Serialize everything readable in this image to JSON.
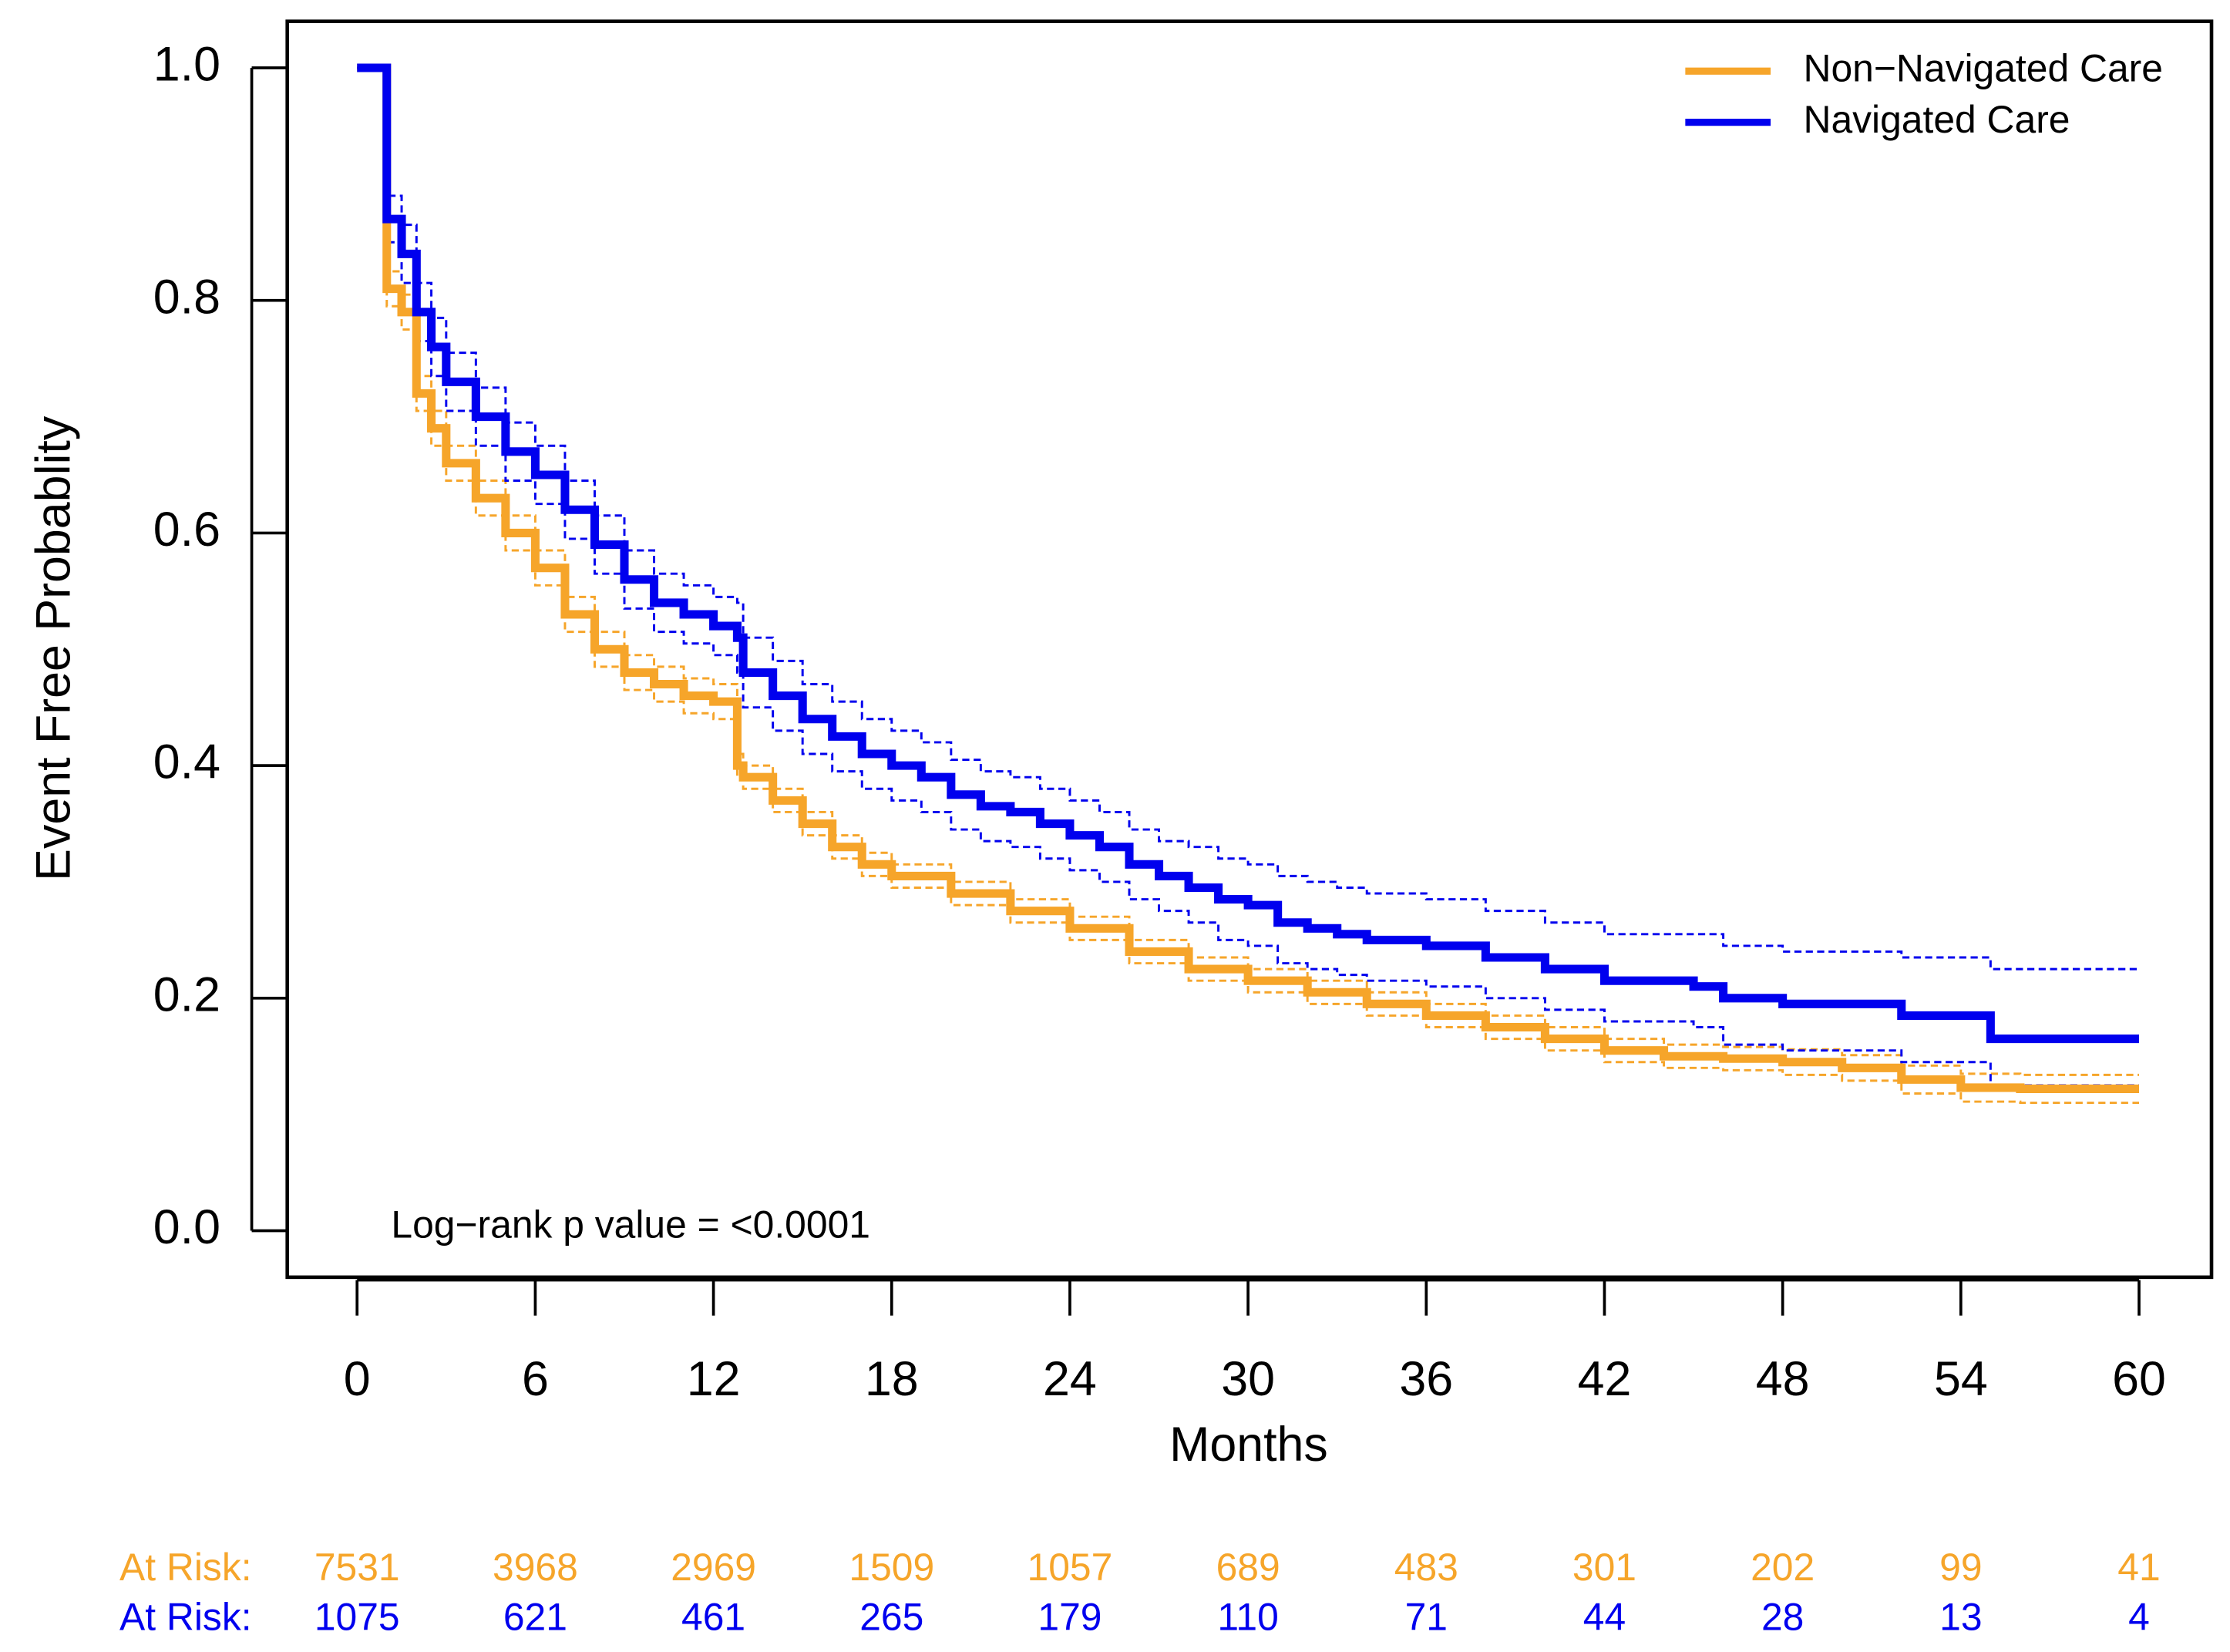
{
  "chart_data": {
    "type": "km",
    "y_label": "Event Free Probablity",
    "x_label": "Months",
    "annotation": "Log−rank p value = <0.0001",
    "xlim": [
      -2.35,
      62.44
    ],
    "ylim": [
      -0.04,
      1.04
    ],
    "xticks": [
      0,
      6,
      12,
      18,
      24,
      30,
      36,
      42,
      48,
      54,
      60
    ],
    "yticks": [
      {
        "value": 0,
        "label": "0.0"
      },
      0.2,
      0.4,
      0.6,
      0.8,
      {
        "value": 1,
        "label": "1.0"
      }
    ],
    "legend": "top-right",
    "at_risk_label": "At Risk:",
    "series": [
      {
        "name": "Non−Navigated Care",
        "color": "#f6a52a",
        "x": [
          0,
          1,
          1.5,
          2,
          2.5,
          3,
          4,
          5,
          6,
          7,
          8,
          9,
          10,
          11,
          12,
          12.8,
          13,
          14,
          15,
          16,
          17,
          18,
          20,
          22,
          24,
          26,
          28,
          30,
          32,
          34,
          36,
          38,
          40,
          42,
          44,
          46,
          48,
          50,
          52,
          54,
          56,
          60
        ],
        "values": [
          1.0,
          0.81,
          0.79,
          0.72,
          0.69,
          0.66,
          0.63,
          0.6,
          0.57,
          0.53,
          0.5,
          0.48,
          0.47,
          0.46,
          0.455,
          0.4,
          0.39,
          0.37,
          0.35,
          0.33,
          0.315,
          0.305,
          0.29,
          0.275,
          0.26,
          0.24,
          0.225,
          0.215,
          0.205,
          0.195,
          0.185,
          0.175,
          0.165,
          0.155,
          0.15,
          0.148,
          0.145,
          0.14,
          0.13,
          0.123,
          0.122,
          0.122
        ],
        "upper": [
          1.0,
          0.825,
          0.805,
          0.735,
          0.705,
          0.675,
          0.645,
          0.615,
          0.585,
          0.545,
          0.515,
          0.495,
          0.485,
          0.475,
          0.47,
          0.41,
          0.4,
          0.38,
          0.36,
          0.34,
          0.325,
          0.315,
          0.3,
          0.285,
          0.27,
          0.25,
          0.235,
          0.225,
          0.215,
          0.205,
          0.195,
          0.185,
          0.175,
          0.165,
          0.16,
          0.158,
          0.156,
          0.151,
          0.142,
          0.135,
          0.134,
          0.134
        ],
        "lower": [
          1.0,
          0.795,
          0.775,
          0.705,
          0.675,
          0.645,
          0.615,
          0.585,
          0.555,
          0.515,
          0.485,
          0.465,
          0.455,
          0.445,
          0.44,
          0.39,
          0.38,
          0.36,
          0.34,
          0.32,
          0.305,
          0.295,
          0.28,
          0.265,
          0.25,
          0.23,
          0.215,
          0.205,
          0.195,
          0.185,
          0.175,
          0.165,
          0.155,
          0.145,
          0.14,
          0.138,
          0.134,
          0.129,
          0.118,
          0.111,
          0.11,
          0.11
        ],
        "at_risk": [
          7531,
          3968,
          2969,
          1509,
          1057,
          689,
          483,
          301,
          202,
          99,
          41
        ]
      },
      {
        "name": "Navigated Care",
        "color": "#0000ee",
        "x": [
          0,
          1,
          1.5,
          2,
          2.5,
          3,
          4,
          5,
          6,
          7,
          8,
          9,
          10,
          11,
          12,
          12.8,
          13,
          14,
          15,
          16,
          17,
          18,
          19,
          20,
          21,
          22,
          23,
          24,
          25,
          26,
          27,
          28,
          29,
          30,
          31,
          32,
          33,
          34,
          36,
          38,
          40,
          42,
          44,
          45,
          46,
          48,
          50,
          52,
          54,
          55,
          60
        ],
        "values": [
          1.0,
          0.87,
          0.84,
          0.79,
          0.76,
          0.73,
          0.7,
          0.67,
          0.65,
          0.62,
          0.59,
          0.56,
          0.54,
          0.53,
          0.52,
          0.51,
          0.48,
          0.46,
          0.44,
          0.425,
          0.41,
          0.4,
          0.39,
          0.375,
          0.365,
          0.36,
          0.35,
          0.34,
          0.33,
          0.315,
          0.305,
          0.295,
          0.285,
          0.28,
          0.265,
          0.26,
          0.255,
          0.25,
          0.245,
          0.235,
          0.225,
          0.215,
          0.215,
          0.21,
          0.2,
          0.195,
          0.195,
          0.185,
          0.185,
          0.165,
          0.165
        ],
        "upper": [
          1.0,
          0.89,
          0.865,
          0.815,
          0.785,
          0.755,
          0.725,
          0.695,
          0.675,
          0.645,
          0.615,
          0.585,
          0.565,
          0.555,
          0.545,
          0.54,
          0.51,
          0.49,
          0.47,
          0.455,
          0.44,
          0.43,
          0.42,
          0.405,
          0.395,
          0.39,
          0.38,
          0.37,
          0.36,
          0.345,
          0.335,
          0.33,
          0.32,
          0.315,
          0.305,
          0.3,
          0.295,
          0.29,
          0.285,
          0.275,
          0.265,
          0.255,
          0.255,
          0.255,
          0.245,
          0.24,
          0.24,
          0.235,
          0.235,
          0.225,
          0.225
        ],
        "lower": [
          1.0,
          0.85,
          0.815,
          0.765,
          0.735,
          0.705,
          0.675,
          0.645,
          0.625,
          0.595,
          0.565,
          0.535,
          0.515,
          0.505,
          0.495,
          0.48,
          0.45,
          0.43,
          0.41,
          0.395,
          0.38,
          0.37,
          0.36,
          0.345,
          0.335,
          0.33,
          0.32,
          0.31,
          0.3,
          0.285,
          0.275,
          0.265,
          0.25,
          0.245,
          0.23,
          0.225,
          0.22,
          0.215,
          0.21,
          0.2,
          0.19,
          0.18,
          0.18,
          0.175,
          0.16,
          0.155,
          0.155,
          0.145,
          0.145,
          0.125,
          0.125
        ],
        "at_risk": [
          1075,
          621,
          461,
          265,
          179,
          110,
          71,
          44,
          28,
          13,
          4
        ]
      }
    ]
  }
}
